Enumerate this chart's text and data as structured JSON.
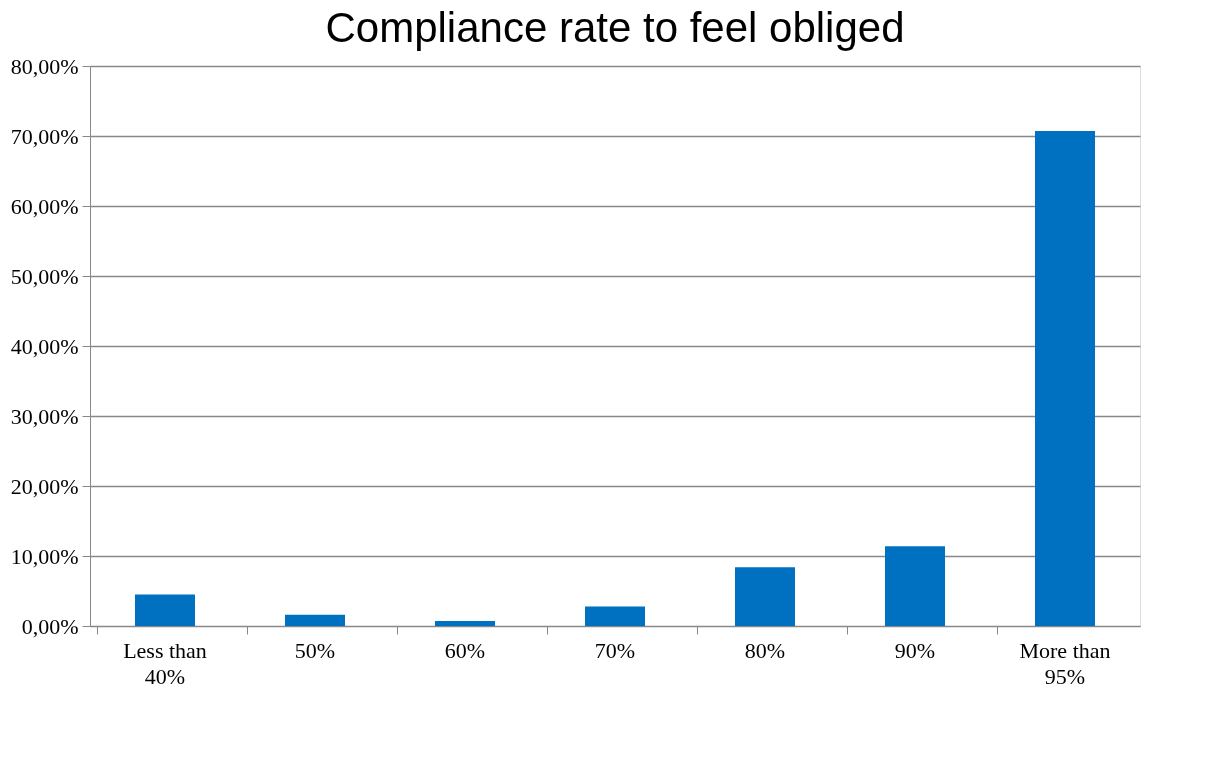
{
  "chart_data": {
    "type": "bar",
    "title": "Compliance rate to feel obliged",
    "categories": [
      "Less than 40%",
      "50%",
      "60%",
      "70%",
      "80%",
      "90%",
      "More than 95%"
    ],
    "values": [
      4.5,
      1.6,
      0.7,
      2.8,
      8.4,
      11.4,
      70.7
    ],
    "color": "#0070c0",
    "ylim": [
      0,
      80
    ],
    "yticks": [
      {
        "value": 0,
        "label": "0,00%"
      },
      {
        "value": 10,
        "label": "10,00%"
      },
      {
        "value": 20,
        "label": "20,00%"
      },
      {
        "value": 30,
        "label": "30,00%"
      },
      {
        "value": 40,
        "label": "40,00%"
      },
      {
        "value": 50,
        "label": "50,00%"
      },
      {
        "value": 60,
        "label": "60,00%"
      },
      {
        "value": 70,
        "label": "70,00%"
      },
      {
        "value": 80,
        "label": "80,00%"
      }
    ],
    "grid": "y"
  }
}
